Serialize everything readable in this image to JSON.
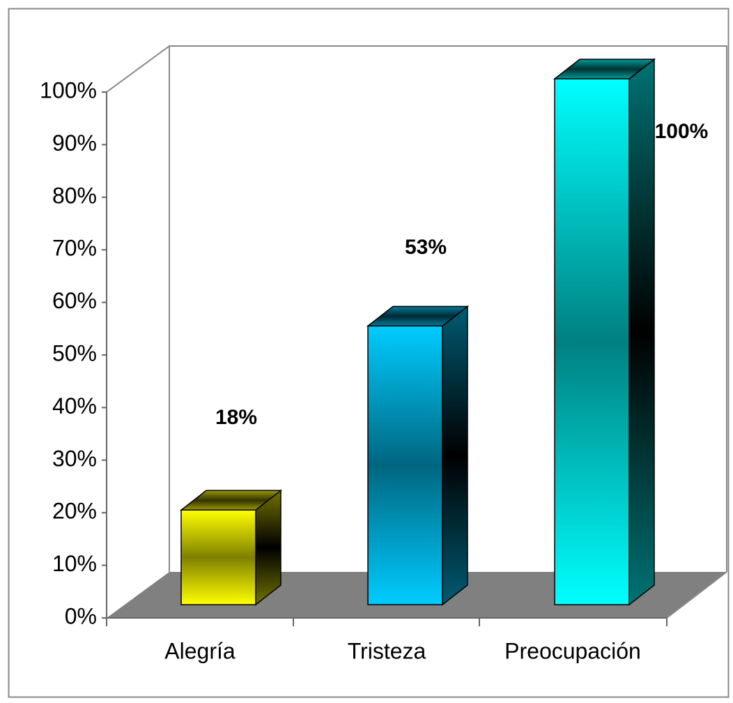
{
  "chart_data": {
    "type": "bar3d",
    "categories": [
      "Alegría",
      "Tristeza",
      "Preocupación"
    ],
    "values": [
      18,
      53,
      100
    ],
    "value_labels": [
      "18%",
      "53%",
      "100%"
    ],
    "colors": [
      "#ffff00",
      "#00ccff",
      "#00ffff"
    ],
    "ylim": [
      0,
      100
    ],
    "yticks": [
      {
        "value": 0,
        "label": "0%"
      },
      {
        "value": 10,
        "label": "10%"
      },
      {
        "value": 20,
        "label": "20%"
      },
      {
        "value": 30,
        "label": "30%"
      },
      {
        "value": 40,
        "label": "40%"
      },
      {
        "value": 50,
        "label": "50%"
      },
      {
        "value": 60,
        "label": "60%"
      },
      {
        "value": 70,
        "label": "70%"
      },
      {
        "value": 80,
        "label": "80%"
      },
      {
        "value": 90,
        "label": "90%"
      },
      {
        "value": 100,
        "label": "100%"
      }
    ],
    "grid": false
  }
}
